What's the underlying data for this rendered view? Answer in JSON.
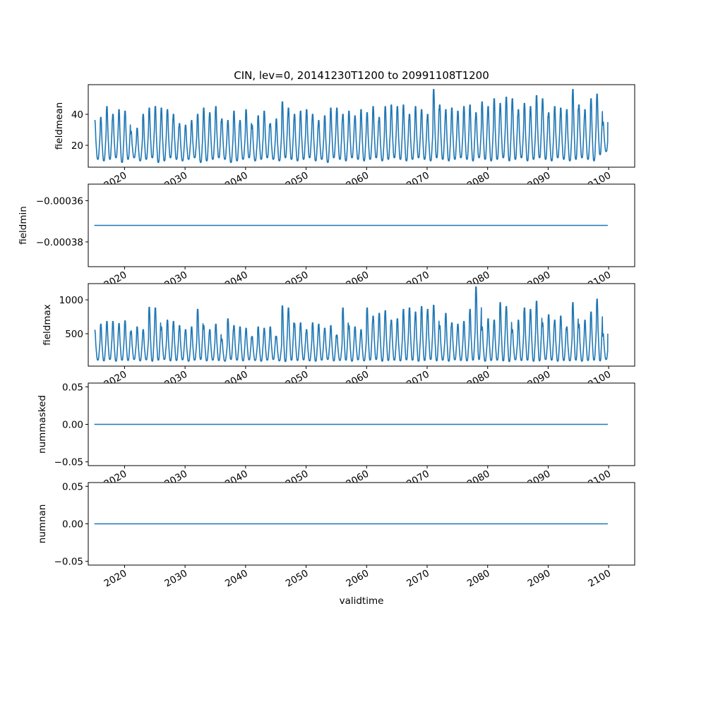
{
  "chart_data": {
    "type": "line",
    "title": "CIN, lev=0, 20141230T1200 to 20991108T1200",
    "xlabel": "validtime",
    "x_ticks": [
      "2020",
      "2030",
      "2040",
      "2050",
      "2060",
      "2070",
      "2080",
      "2090",
      "2100"
    ],
    "x_range": [
      2014.0,
      2104.3
    ],
    "data_range": [
      2015.0,
      2099.85
    ],
    "line_color": "#1f77b4",
    "panels": [
      {
        "ylabel": "fieldmean",
        "ylim": [
          5.9,
          59.1
        ],
        "y_ticks": [
          {
            "v": 20,
            "label": "20"
          },
          {
            "v": 40,
            "label": "40"
          }
        ],
        "kind": "seasonal",
        "start_value": 36,
        "end_value": 35,
        "annual_max": [
          36,
          38,
          45,
          40,
          43,
          42,
          29,
          31,
          40,
          44,
          45,
          44,
          43,
          40,
          34,
          33,
          36,
          40,
          44,
          41,
          45,
          37,
          36,
          42,
          36,
          43,
          33,
          39,
          42,
          34,
          37,
          48,
          44,
          40,
          42,
          43,
          40,
          36,
          39,
          44,
          44,
          40,
          42,
          39,
          43,
          41,
          45,
          38,
          45,
          46,
          45,
          46,
          40,
          45,
          43,
          40,
          56,
          46,
          43,
          44,
          42,
          45,
          46,
          41,
          48,
          45,
          50,
          47,
          51,
          50,
          43,
          47,
          45,
          52,
          50,
          41,
          45,
          44,
          43,
          56,
          46,
          43,
          50,
          53,
          35
        ],
        "annual_min": [
          11,
          10,
          11,
          12,
          9,
          11,
          12,
          10,
          11,
          12,
          9,
          10,
          12,
          11,
          10,
          11,
          12,
          9,
          10,
          11,
          12,
          11,
          9,
          10,
          11,
          12,
          10,
          11,
          12,
          11,
          10,
          12,
          11,
          10,
          11,
          12,
          10,
          11,
          9,
          12,
          11,
          10,
          12,
          11,
          10,
          11,
          12,
          10,
          11,
          12,
          11,
          10,
          11,
          12,
          11,
          10,
          12,
          11,
          10,
          11,
          12,
          11,
          10,
          12,
          11,
          10,
          11,
          12,
          10,
          11,
          12,
          10,
          11,
          12,
          11,
          10,
          12,
          11,
          10,
          11,
          12,
          11,
          10,
          14,
          16
        ]
      },
      {
        "ylabel": "fieldmin",
        "ylim": [
          -0.000392,
          -0.000352
        ],
        "y_ticks": [
          {
            "v": -0.00036,
            "label": "−0.00036"
          },
          {
            "v": -0.00038,
            "label": "−0.00038"
          }
        ],
        "kind": "constant",
        "value": -0.000372
      },
      {
        "ylabel": "fieldmax",
        "ylim": [
          21,
          1240
        ],
        "y_ticks": [
          {
            "v": 500,
            "label": "500"
          },
          {
            "v": 1000,
            "label": "1000"
          }
        ],
        "kind": "seasonal",
        "start_value": 550,
        "end_value": 500,
        "annual_max": [
          550,
          640,
          680,
          680,
          650,
          690,
          540,
          600,
          560,
          890,
          880,
          600,
          700,
          680,
          620,
          560,
          600,
          860,
          620,
          560,
          640,
          420,
          720,
          620,
          600,
          580,
          460,
          600,
          580,
          600,
          460,
          910,
          880,
          650,
          660,
          560,
          660,
          640,
          580,
          620,
          480,
          880,
          620,
          600,
          560,
          880,
          760,
          800,
          840,
          700,
          720,
          860,
          880,
          820,
          900,
          860,
          920,
          620,
          800,
          660,
          640,
          680,
          860,
          1190,
          600,
          720,
          700,
          960,
          900,
          560,
          700,
          880,
          860,
          980,
          660,
          780,
          700,
          760,
          600,
          960,
          640,
          700,
          820,
          1010,
          500
        ],
        "annual_min": [
          110,
          100,
          120,
          95,
          110,
          105,
          120,
          100,
          115,
          95,
          110,
          120,
          100,
          105,
          115,
          95,
          110,
          120,
          100,
          110,
          105,
          95,
          120,
          110,
          100,
          115,
          105,
          95,
          110,
          120,
          100,
          90,
          110,
          105,
          115,
          100,
          95,
          110,
          120,
          100,
          105,
          110,
          95,
          115,
          100,
          110,
          120,
          95,
          105,
          110,
          100,
          115,
          110,
          95,
          105,
          120,
          100,
          110,
          95,
          115,
          105,
          100,
          110,
          120,
          95,
          105,
          110,
          100,
          90,
          115,
          105,
          110,
          95,
          100,
          120,
          110,
          95,
          105,
          100,
          110,
          95,
          105,
          110,
          100,
          120
        ]
      },
      {
        "ylabel": "nummasked",
        "ylim": [
          -0.055,
          0.055
        ],
        "y_ticks": [
          {
            "v": 0.05,
            "label": "0.05"
          },
          {
            "v": 0,
            "label": "0.00"
          },
          {
            "v": -0.05,
            "label": "−0.05"
          }
        ],
        "kind": "constant",
        "value": 0
      },
      {
        "ylabel": "numnan",
        "ylim": [
          -0.055,
          0.055
        ],
        "y_ticks": [
          {
            "v": 0.05,
            "label": "0.05"
          },
          {
            "v": 0,
            "label": "0.00"
          },
          {
            "v": -0.05,
            "label": "−0.05"
          }
        ],
        "kind": "constant",
        "value": 0
      }
    ]
  }
}
